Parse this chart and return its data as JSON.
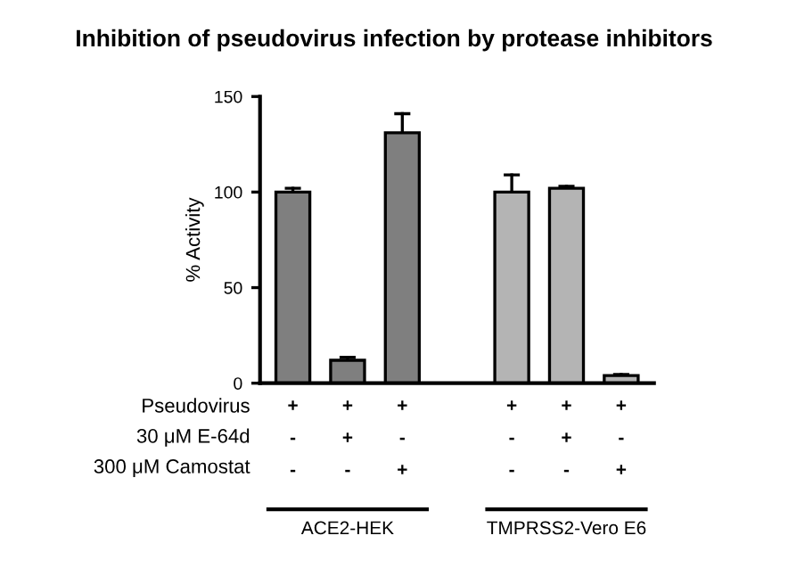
{
  "chart_data": {
    "type": "bar",
    "title": "Inhibition of pseudovirus infection by protease inhibitors",
    "ylabel": "% Activity",
    "categories": [
      "+\n-\n-",
      "+\n+\n-",
      "+\n-\n+",
      null,
      "+\n-\n-",
      "+\n+\n-",
      "+\n-\n+"
    ],
    "values": [
      100,
      12,
      131,
      null,
      100,
      102,
      4
    ],
    "errors": [
      2,
      1.5,
      10,
      null,
      9,
      1,
      0.5
    ],
    "colors": [
      "#7f7f7f",
      "#7f7f7f",
      "#7f7f7f",
      null,
      "#b4b4b4",
      "#b4b4b4",
      "#b4b4b4"
    ],
    "ylim": [
      0,
      150
    ],
    "yticks": [
      0,
      50,
      100,
      150
    ],
    "grid": false,
    "annotations": [
      "Pseudovirus\n30 μM E-64d\n300 μM Camostat",
      "ACE2-HEK",
      "TMPRSS2-Vero E6"
    ]
  }
}
